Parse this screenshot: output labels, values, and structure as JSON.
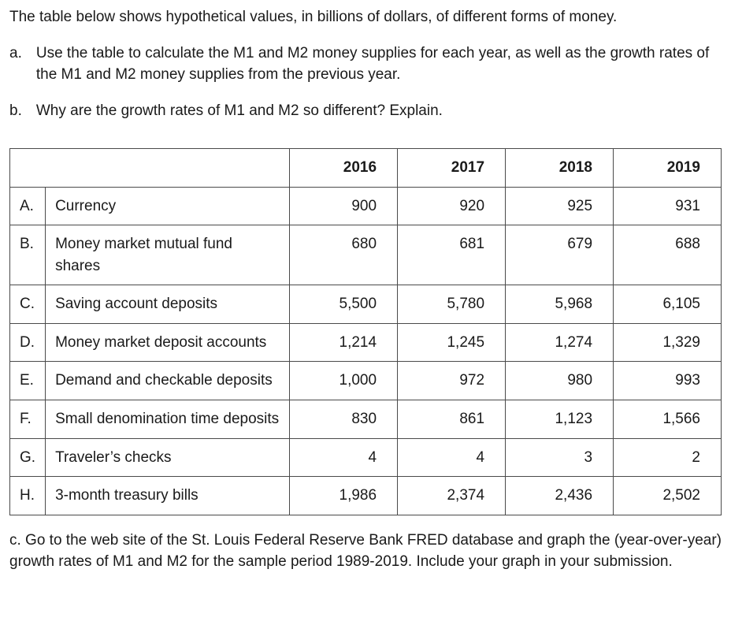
{
  "intro": "The table below shows hypothetical values, in billions of dollars, of different forms of money.",
  "questions": {
    "a": {
      "letter": "a.",
      "text": "Use the table to calculate the M1 and M2 money supplies for each year, as well as the growth rates of the M1 and M2 money supplies from the previous year."
    },
    "b": {
      "letter": "b.",
      "text": "Why are the growth rates of M1 and M2 so different? Explain."
    },
    "c": {
      "text": "c. Go to the web site of the St. Louis Federal Reserve Bank FRED database and graph the (year-over-year) growth rates of M1 and M2 for the sample period 1989-2019. Include your graph in your submission."
    }
  },
  "table": {
    "years": [
      "2016",
      "2017",
      "2018",
      "2019"
    ],
    "rows": [
      {
        "letter": "A.",
        "label": "Currency",
        "values": [
          "900",
          "920",
          "925",
          "931"
        ]
      },
      {
        "letter": "B.",
        "label": "Money market mutual fund shares",
        "values": [
          "680",
          "681",
          "679",
          "688"
        ]
      },
      {
        "letter": "C.",
        "label": "Saving account deposits",
        "values": [
          "5,500",
          "5,780",
          "5,968",
          "6,105"
        ]
      },
      {
        "letter": "D.",
        "label": "Money market deposit accounts",
        "values": [
          "1,214",
          "1,245",
          "1,274",
          "1,329"
        ]
      },
      {
        "letter": "E.",
        "label": "Demand and checkable deposits",
        "values": [
          "1,000",
          "972",
          "980",
          "993"
        ]
      },
      {
        "letter": "F.",
        "label": "Small denomination time deposits",
        "values": [
          "830",
          "861",
          "1,123",
          "1,566"
        ]
      },
      {
        "letter": "G.",
        "label": "Traveler’s checks",
        "values": [
          "4",
          "4",
          "3",
          "2"
        ]
      },
      {
        "letter": "H.",
        "label": "3-month treasury bills",
        "values": [
          "1,986",
          "2,374",
          "2,436",
          "2,502"
        ]
      }
    ]
  },
  "style": {
    "font_size_pt": 14,
    "text_color": "#1a1a1a",
    "border_color": "#4a4a4a",
    "background_color": "#ffffff",
    "table_col_widths": {
      "letter": 40,
      "label": 310
    }
  }
}
